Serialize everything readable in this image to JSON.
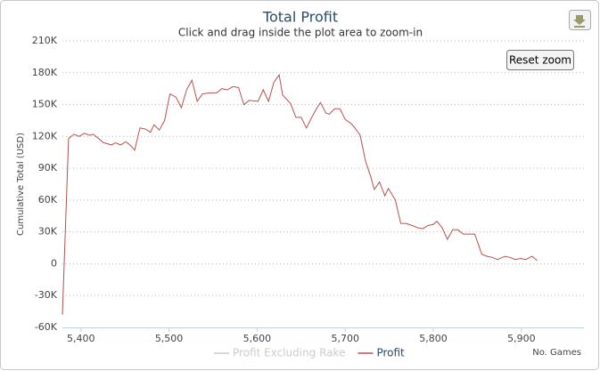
{
  "chart_data": {
    "type": "line",
    "title": "Total Profit",
    "subtitle": "Click and drag inside the plot area to zoom-in",
    "reset_zoom": "Reset zoom",
    "y_label": "Cumulative Total (USD)",
    "x_label": "No. Games",
    "grid": true,
    "xlim": [
      5379,
      5971
    ],
    "ylim": [
      -60000,
      210000
    ],
    "xticks": [
      {
        "value": 5400,
        "label": "5,400"
      },
      {
        "value": 5500,
        "label": "5,500"
      },
      {
        "value": 5600,
        "label": "5,600"
      },
      {
        "value": 5700,
        "label": "5,700"
      },
      {
        "value": 5800,
        "label": "5,800"
      },
      {
        "value": 5900,
        "label": "5,900"
      }
    ],
    "yticks": [
      {
        "value": -60000,
        "label": "-60K"
      },
      {
        "value": -30000,
        "label": "-30K"
      },
      0,
      {
        "value": 30000,
        "label": "30K"
      },
      {
        "value": 60000,
        "label": "60K"
      },
      {
        "value": 90000,
        "label": "90K"
      },
      {
        "value": 120000,
        "label": "120K"
      },
      {
        "value": 150000,
        "label": "150K"
      },
      {
        "value": 180000,
        "label": "180K"
      },
      {
        "value": 210000,
        "label": "210K"
      }
    ],
    "series": [
      {
        "name": "Profit Excluding Rake",
        "color": "#cccccc",
        "visible": false
      },
      {
        "name": "Profit",
        "color": "#b5514e",
        "visible": true,
        "x": [
          5379,
          5386,
          5392,
          5398,
          5404,
          5410,
          5414,
          5420,
          5426,
          5435,
          5439,
          5445,
          5451,
          5457,
          5461,
          5467,
          5473,
          5479,
          5483,
          5489,
          5495,
          5501,
          5508,
          5514,
          5520,
          5526,
          5532,
          5538,
          5546,
          5554,
          5560,
          5566,
          5573,
          5579,
          5585,
          5591,
          5601,
          5607,
          5613,
          5619,
          5625,
          5629,
          5638,
          5644,
          5650,
          5656,
          5662,
          5668,
          5672,
          5678,
          5682,
          5688,
          5694,
          5700,
          5707,
          5711,
          5717,
          5723,
          5729,
          5733,
          5739,
          5745,
          5749,
          5757,
          5763,
          5769,
          5776,
          5782,
          5788,
          5794,
          5800,
          5804,
          5810,
          5816,
          5822,
          5828,
          5834,
          5841,
          5847,
          5855,
          5861,
          5867,
          5873,
          5881,
          5887,
          5893,
          5899,
          5905,
          5912,
          5918
        ],
        "values": [
          -48000,
          118000,
          122000,
          120000,
          123000,
          121000,
          122000,
          118000,
          114000,
          112000,
          114000,
          112000,
          115000,
          111000,
          107000,
          128000,
          127000,
          124000,
          131000,
          126000,
          135000,
          160000,
          157000,
          147000,
          164000,
          173000,
          153000,
          160000,
          161000,
          161000,
          165000,
          164000,
          167000,
          166000,
          150000,
          154000,
          153000,
          164000,
          153000,
          171000,
          178000,
          159000,
          151000,
          138000,
          138000,
          128000,
          138000,
          147000,
          152000,
          142000,
          141000,
          146000,
          146000,
          136000,
          132000,
          128000,
          121000,
          97000,
          82000,
          70000,
          77000,
          64000,
          71000,
          60000,
          38000,
          38000,
          36000,
          34000,
          33000,
          36000,
          37000,
          40000,
          34000,
          23000,
          32000,
          32000,
          28000,
          28000,
          28000,
          9000,
          7000,
          6000,
          4000,
          7000,
          6000,
          4000,
          5000,
          4000,
          7000,
          3000
        ]
      }
    ]
  }
}
